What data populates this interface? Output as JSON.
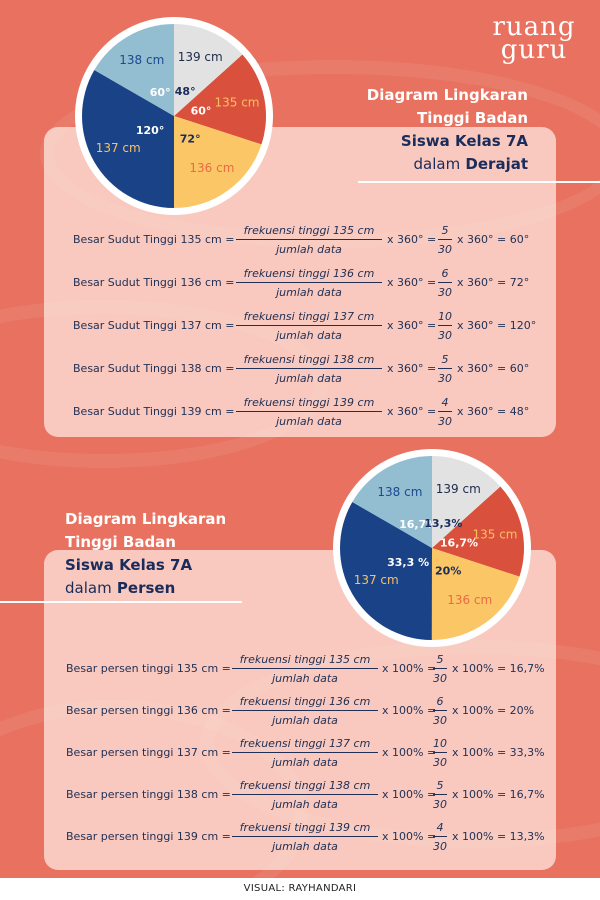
{
  "brand": {
    "line1": "ruang",
    "line2": "guru"
  },
  "top": {
    "title_line1": "Diagram Lingkaran",
    "title_line2": "Tinggi Badan",
    "title_line3": "Siswa Kelas 7A",
    "title_line4_pre": "dalam",
    "title_line4_bold": "Derajat",
    "rows": [
      {
        "label": "Besar Sudut Tinggi 135 cm =",
        "num": "frekuensi tinggi 135 cm",
        "den": "jumlah data",
        "mult": "x 360° =",
        "snum": "5",
        "sden": "30",
        "result": "x 360° = 60°"
      },
      {
        "label": "Besar Sudut Tinggi 136 cm =",
        "num": "frekuensi tinggi 136 cm",
        "den": "jumlah data",
        "mult": "x 360° =",
        "snum": "6",
        "sden": "30",
        "result": "x 360° = 72°"
      },
      {
        "label": "Besar Sudut Tinggi 137 cm =",
        "num": "frekuensi tinggi 137 cm",
        "den": "jumlah data",
        "mult": "x 360° =",
        "snum": "10",
        "sden": "30",
        "result": "x 360° = 120°"
      },
      {
        "label": "Besar Sudut Tinggi 138 cm =",
        "num": "frekuensi tinggi 138 cm",
        "den": "jumlah data",
        "mult": "x 360° =",
        "snum": "5",
        "sden": "30",
        "result": "x 360° = 60°"
      },
      {
        "label": "Besar Sudut Tinggi 139 cm =",
        "num": "frekuensi tinggi 139 cm",
        "den": "jumlah data",
        "mult": "x 360° =",
        "snum": "4",
        "sden": "30",
        "result": "x 360° = 48°"
      }
    ]
  },
  "bottom": {
    "title_line1": "Diagram Lingkaran",
    "title_line2": "Tinggi Badan",
    "title_line3": "Siswa Kelas 7A",
    "title_line4_pre": "dalam",
    "title_line4_bold": "Persen",
    "rows": [
      {
        "label": "Besar persen tinggi 135 cm =",
        "num": "frekuensi tinggi 135 cm",
        "den": "jumlah data",
        "mult": "x 100% =",
        "snum": "5",
        "sden": "30",
        "result": "x 100% = 16,7%"
      },
      {
        "label": "Besar persen tinggi 136 cm =",
        "num": "frekuensi tinggi 136 cm",
        "den": "jumlah data",
        "mult": "x 100% =",
        "snum": "6",
        "sden": "30",
        "result": "x 100% = 20%"
      },
      {
        "label": "Besar persen tinggi 137 cm =",
        "num": "frekuensi tinggi 137 cm",
        "den": "jumlah data",
        "mult": "x 100% =",
        "snum": "10",
        "sden": "30",
        "result": "x 100% = 33,3%"
      },
      {
        "label": "Besar persen tinggi 138 cm =",
        "num": "frekuensi tinggi 138 cm",
        "den": "jumlah data",
        "mult": "x 100% =",
        "snum": "5",
        "sden": "30",
        "result": "x 100% = 16,7%"
      },
      {
        "label": "Besar persen tinggi 139 cm =",
        "num": "frekuensi tinggi 139 cm",
        "den": "jumlah data",
        "mult": "x 100% =",
        "snum": "4",
        "sden": "30",
        "result": "x 100% = 13,3%"
      }
    ]
  },
  "footer": {
    "credit": "VISUAL: RAYHANDARI"
  },
  "colors": {
    "background": "#e8715f",
    "navy": "#1a2c5b",
    "slice_135": "#d9503c",
    "slice_136": "#fbc766",
    "slice_137": "#1a4286",
    "slice_138": "#93bdd0",
    "slice_139": "#e2e2e2",
    "label_135": "#f8c060",
    "label_136": "#ea6a45",
    "label_137": "#f8c060",
    "label_138": "#1d4a8e",
    "label_139": "#1d2b4a"
  },
  "chart_data": [
    {
      "type": "pie",
      "title": "Diagram Lingkaran Tinggi Badan Siswa Kelas 7A dalam Derajat",
      "categories": [
        "135 cm",
        "136 cm",
        "137 cm",
        "138 cm",
        "139 cm"
      ],
      "values": [
        60,
        72,
        120,
        60,
        48
      ],
      "value_labels": [
        "60°",
        "72°",
        "120°",
        "60°",
        "48°"
      ],
      "frequencies": [
        5,
        6,
        10,
        5,
        4
      ],
      "total": 30,
      "unit": "degrees"
    },
    {
      "type": "pie",
      "title": "Diagram Lingkaran Tinggi Badan Siswa Kelas 7A dalam Persen",
      "categories": [
        "135 cm",
        "136 cm",
        "137 cm",
        "138 cm",
        "139 cm"
      ],
      "values": [
        16.7,
        20,
        33.3,
        16.7,
        13.3
      ],
      "value_labels": [
        "16,7%",
        "20%",
        "33,3 %",
        "16,7%",
        "13,3%"
      ],
      "frequencies": [
        5,
        6,
        10,
        5,
        4
      ],
      "total": 30,
      "unit": "percent"
    }
  ]
}
